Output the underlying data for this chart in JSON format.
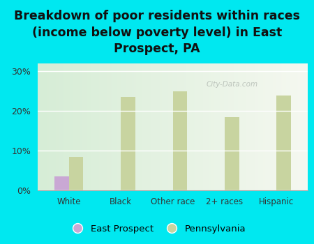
{
  "title": "Breakdown of poor residents within races\n(income below poverty level) in East\nProspect, PA",
  "categories": [
    "White",
    "Black",
    "Other race",
    "2+ races",
    "Hispanic"
  ],
  "east_prospect": [
    3.5,
    0,
    0,
    0,
    0
  ],
  "pennsylvania": [
    8.5,
    23.5,
    25.0,
    18.5,
    24.0
  ],
  "ep_color": "#c9a8d4",
  "pa_color": "#c8d4a0",
  "bg_color": "#00e8f0",
  "plot_bg_left": "#d6edd6",
  "plot_bg_right": "#f5f8f0",
  "ylim": [
    0,
    32
  ],
  "yticks": [
    0,
    10,
    20,
    30
  ],
  "ytick_labels": [
    "0%",
    "10%",
    "20%",
    "30%"
  ],
  "bar_width": 0.28,
  "title_fontsize": 12.5,
  "watermark": "City-Data.com"
}
